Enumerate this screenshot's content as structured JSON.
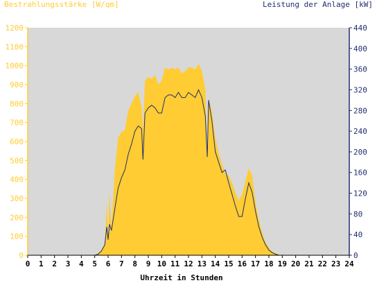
{
  "chart_data": {
    "type": "area",
    "title_left": "Bestrahlungsstärke [W/qm]",
    "title_right": "Leistung der Anlage [kW]",
    "xlabel": "Uhrzeit in Stunden",
    "x_ticks": [
      "0",
      "1",
      "2",
      "3",
      "4",
      "5",
      "6",
      "7",
      "8",
      "9",
      "10",
      "11",
      "12",
      "13",
      "14",
      "15",
      "16",
      "17",
      "18",
      "19",
      "20",
      "21",
      "22",
      "23",
      "24"
    ],
    "xlim": [
      0,
      24
    ],
    "y_left": {
      "ticks": [
        "0",
        "100",
        "200",
        "300",
        "400",
        "500",
        "600",
        "700",
        "800",
        "900",
        "1000",
        "1100",
        "1200"
      ],
      "ylim": [
        0,
        1200
      ]
    },
    "y_right": {
      "ticks": [
        "0",
        "40",
        "80",
        "120",
        "160",
        "200",
        "240",
        "280",
        "320",
        "360",
        "400",
        "440"
      ],
      "ylim": [
        0,
        440
      ]
    },
    "grid": false,
    "colors": {
      "plot_bg": "#d8d8d8",
      "irradiance_fill": "#ffcc33",
      "power_line": "#1f2f6e",
      "left_axis": "#ffcc33",
      "right_axis": "#1f2f6e",
      "x_axis": "#000000"
    },
    "series": [
      {
        "axis": "left",
        "style": "filled-area",
        "x": [
          5.0,
          5.25,
          5.5,
          5.75,
          5.9,
          6.0,
          6.1,
          6.25,
          6.5,
          6.75,
          7.0,
          7.25,
          7.5,
          7.75,
          8.0,
          8.25,
          8.5,
          8.6,
          8.75,
          9.0,
          9.25,
          9.5,
          9.75,
          10.0,
          10.25,
          10.5,
          10.75,
          11.0,
          11.25,
          11.5,
          11.75,
          12.0,
          12.25,
          12.5,
          12.75,
          13.0,
          13.25,
          13.4,
          13.5,
          13.75,
          14.0,
          14.25,
          14.5,
          14.75,
          15.0,
          15.25,
          15.5,
          15.75,
          16.0,
          16.25,
          16.5,
          16.75,
          17.0,
          17.25,
          17.5,
          17.75,
          18.0,
          18.25,
          18.5,
          18.75,
          19.0,
          19.25
        ],
        "values": [
          0,
          10,
          30,
          60,
          280,
          100,
          330,
          150,
          450,
          620,
          650,
          660,
          760,
          800,
          840,
          860,
          780,
          650,
          920,
          940,
          930,
          950,
          900,
          920,
          990,
          980,
          990,
          980,
          990,
          960,
          970,
          990,
          990,
          980,
          1010,
          970,
          880,
          560,
          830,
          760,
          620,
          540,
          480,
          430,
          420,
          380,
          330,
          290,
          320,
          390,
          460,
          420,
          280,
          190,
          120,
          70,
          40,
          20,
          10,
          5,
          0,
          0
        ]
      },
      {
        "axis": "right",
        "style": "line",
        "x": [
          5.0,
          5.25,
          5.5,
          5.75,
          5.9,
          6.0,
          6.1,
          6.25,
          6.5,
          6.75,
          7.0,
          7.25,
          7.5,
          7.75,
          8.0,
          8.25,
          8.5,
          8.6,
          8.75,
          9.0,
          9.25,
          9.5,
          9.75,
          10.0,
          10.25,
          10.5,
          10.75,
          11.0,
          11.25,
          11.5,
          11.75,
          12.0,
          12.25,
          12.5,
          12.75,
          13.0,
          13.25,
          13.4,
          13.5,
          13.75,
          14.0,
          14.25,
          14.5,
          14.75,
          15.0,
          15.25,
          15.5,
          15.75,
          16.0,
          16.25,
          16.5,
          16.75,
          17.0,
          17.25,
          17.5,
          17.75,
          18.0,
          18.25,
          18.5,
          18.75,
          19.0,
          19.25
        ],
        "values": [
          0,
          2,
          8,
          20,
          55,
          30,
          60,
          48,
          90,
          130,
          150,
          165,
          195,
          215,
          240,
          250,
          245,
          185,
          275,
          285,
          290,
          285,
          275,
          275,
          305,
          310,
          310,
          305,
          315,
          305,
          305,
          315,
          310,
          305,
          320,
          305,
          270,
          190,
          300,
          260,
          200,
          180,
          160,
          165,
          140,
          118,
          95,
          75,
          75,
          110,
          140,
          122,
          85,
          55,
          35,
          20,
          10,
          5,
          2,
          0,
          0,
          0
        ]
      }
    ]
  }
}
